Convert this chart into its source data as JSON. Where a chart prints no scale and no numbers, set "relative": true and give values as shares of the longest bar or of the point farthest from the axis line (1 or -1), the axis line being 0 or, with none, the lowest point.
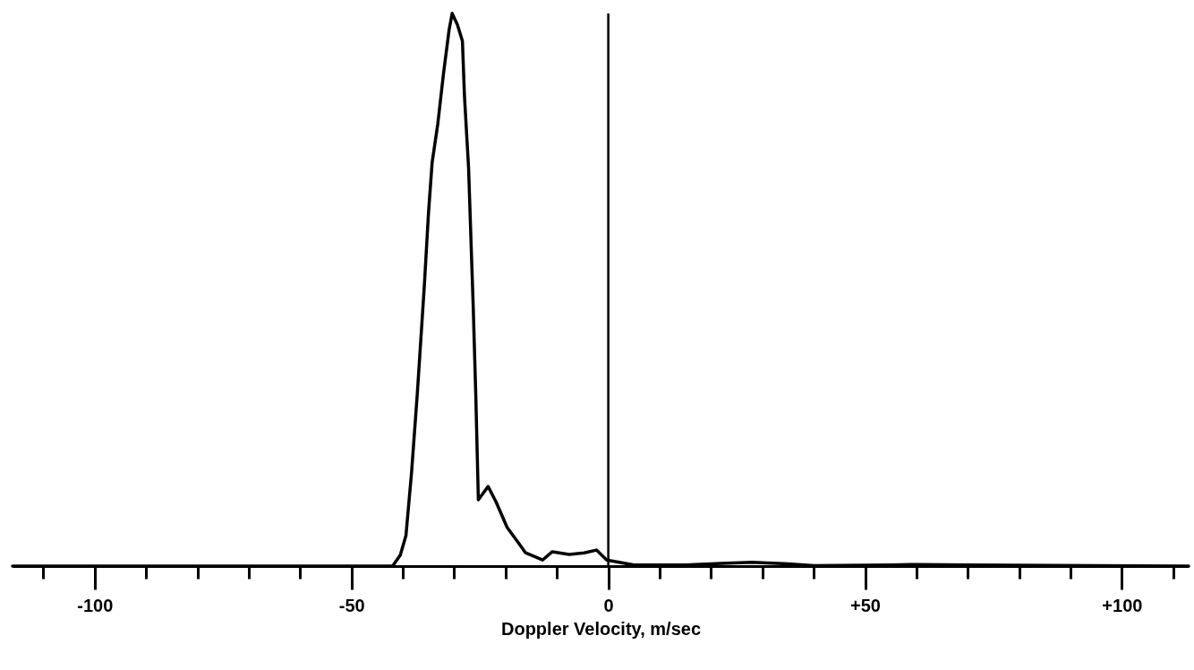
{
  "chart_data": {
    "type": "line",
    "xlabel": "Doppler Velocity, m/sec",
    "relative": true,
    "x": [
      -116,
      -42,
      -40.5,
      -39.4,
      -38.3,
      -37.2,
      -36.5,
      -35.8,
      -35.0,
      -34.3,
      -33.2,
      -32.1,
      -31.0,
      -30.4,
      -29.4,
      -28.4,
      -28.0,
      -27.2,
      -26.7,
      -26.3,
      -25.8,
      -25.3,
      -23.4,
      -21.9,
      -19.7,
      -17.5,
      -16.1,
      -12.8,
      -10.9,
      -7.6,
      -4.7,
      -2.3,
      -0.3,
      5,
      15,
      22,
      28,
      35,
      40,
      55,
      60,
      70,
      113
    ],
    "series": [
      {
        "color": "#000000",
        "values": [
          0,
          0,
          0.02,
          0.055,
          0.17,
          0.31,
          0.41,
          0.51,
          0.64,
          0.73,
          0.8,
          0.89,
          0.97,
          1.0,
          0.98,
          0.95,
          0.85,
          0.72,
          0.58,
          0.47,
          0.31,
          0.12,
          0.144,
          0.117,
          0.07,
          0.042,
          0.024,
          0.011,
          0.026,
          0.021,
          0.024,
          0.029,
          0.011,
          0.002,
          0.002,
          0.005,
          0.007,
          0.004,
          0.001,
          0.002,
          0.003,
          0.002,
          0
        ]
      }
    ],
    "xlim": [
      -116,
      113
    ],
    "xticks": [
      {
        "value": -110,
        "label": null
      },
      -100,
      {
        "value": -90,
        "label": null
      },
      {
        "value": -80,
        "label": null
      },
      {
        "value": -70,
        "label": null
      },
      {
        "value": -60,
        "label": null
      },
      -50,
      {
        "value": -40,
        "label": null
      },
      {
        "value": -30,
        "label": null
      },
      {
        "value": -20,
        "label": null
      },
      {
        "value": -10,
        "label": null
      },
      0,
      {
        "value": 10,
        "label": null
      },
      {
        "value": 20,
        "label": null
      },
      {
        "value": 30,
        "label": null
      },
      {
        "value": 40,
        "label": null
      },
      {
        "value": 50,
        "label": "+50"
      },
      {
        "value": 60,
        "label": null
      },
      {
        "value": 70,
        "label": null
      },
      {
        "value": 80,
        "label": null
      },
      {
        "value": 90,
        "label": null
      },
      {
        "value": 100,
        "label": "+100"
      },
      {
        "value": 110,
        "label": null
      }
    ],
    "ref_lines": [
      {
        "axis": "x",
        "value": 0
      }
    ],
    "grid": false,
    "marker": "none",
    "line_style": "solid"
  }
}
